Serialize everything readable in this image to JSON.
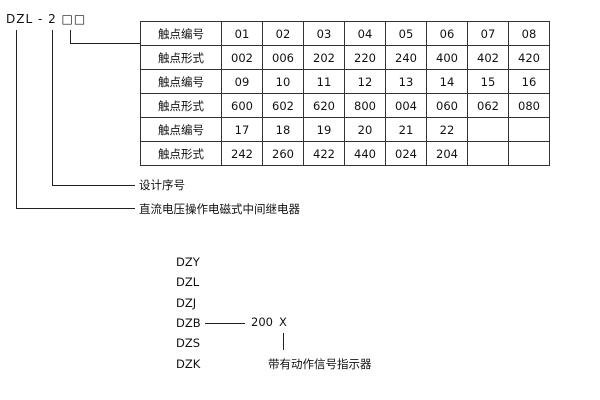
{
  "model_code": "DZL - 2 □□",
  "table": {
    "rows": [
      {
        "label": "触点编号",
        "cells": [
          "01",
          "02",
          "03",
          "04",
          "05",
          "06",
          "07",
          "08"
        ]
      },
      {
        "label": "触点形式",
        "cells": [
          "002",
          "006",
          "202",
          "220",
          "240",
          "400",
          "402",
          "420"
        ]
      },
      {
        "label": "触点编号",
        "cells": [
          "09",
          "10",
          "11",
          "12",
          "13",
          "14",
          "15",
          "16"
        ]
      },
      {
        "label": "触点形式",
        "cells": [
          "600",
          "602",
          "620",
          "800",
          "004",
          "060",
          "062",
          "080"
        ]
      },
      {
        "label": "触点编号",
        "cells": [
          "17",
          "18",
          "19",
          "20",
          "21",
          "22",
          "",
          ""
        ]
      },
      {
        "label": "触点形式",
        "cells": [
          "242",
          "260",
          "422",
          "440",
          "024",
          "204",
          "",
          ""
        ]
      }
    ]
  },
  "design_no_label": "设计序号",
  "type_label": "直流电压操作电磁式中间继电器",
  "series": [
    "DZY",
    "DZL",
    "DZJ",
    "DZB",
    "DZS",
    "DZK"
  ],
  "suffix_code": "200",
  "suffix_x": "X",
  "indicator_label": "带有动作信号指示器"
}
